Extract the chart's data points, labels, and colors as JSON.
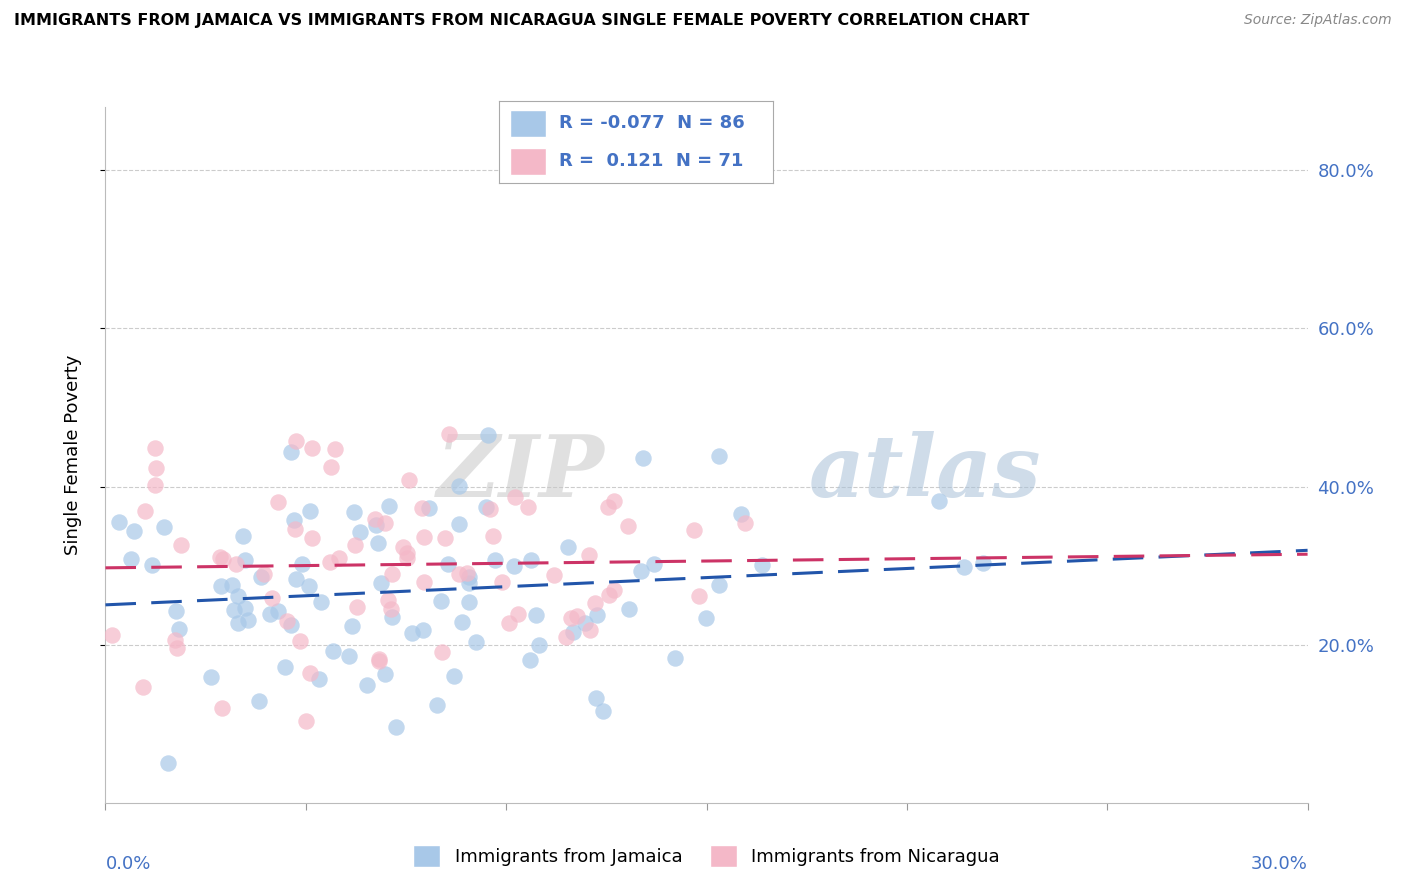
{
  "title": "IMMIGRANTS FROM JAMAICA VS IMMIGRANTS FROM NICARAGUA SINGLE FEMALE POVERTY CORRELATION CHART",
  "source": "Source: ZipAtlas.com",
  "ylabel": "Single Female Poverty",
  "ylim": [
    0.0,
    0.88
  ],
  "xlim": [
    0.0,
    0.3
  ],
  "ytick_values": [
    0.2,
    0.4,
    0.6,
    0.8
  ],
  "xtick_values": [
    0.0,
    0.05,
    0.1,
    0.15,
    0.2,
    0.25,
    0.3
  ],
  "jamaica_color": "#a8c8e8",
  "nicaragua_color": "#f4b8c8",
  "jamaica_line_color": "#2255aa",
  "nicaragua_line_color": "#cc3366",
  "jamaica_R": -0.077,
  "jamaica_N": 86,
  "nicaragua_R": 0.121,
  "nicaragua_N": 71,
  "legend_label_jamaica": "Immigrants from Jamaica",
  "legend_label_nicaragua": "Immigrants from Nicaragua",
  "watermark_zip": "ZIP",
  "watermark_atlas": "atlas"
}
